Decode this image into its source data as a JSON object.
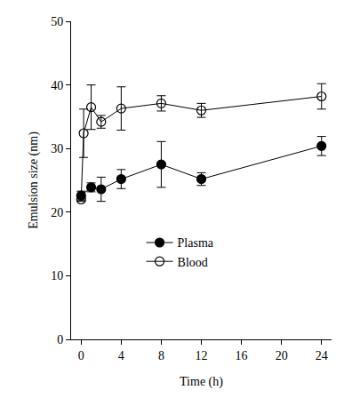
{
  "chart_data": {
    "type": "line",
    "x_label": "Time (h)",
    "y_label": "Emulsion size (nm)",
    "xlim": [
      -1,
      25
    ],
    "xticks": [
      0,
      4,
      8,
      12,
      16,
      20,
      24
    ],
    "ylim": [
      0,
      50
    ],
    "yticks": [
      0,
      10,
      20,
      30,
      40,
      50
    ],
    "grid": false,
    "legend": "lower center",
    "series": [
      {
        "name": "Plasma",
        "color": "#000000",
        "marker": "filled",
        "x": [
          0,
          1,
          2,
          4,
          8,
          12,
          24
        ],
        "values": [
          22.6,
          23.9,
          23.6,
          25.2,
          27.5,
          25.2,
          30.4
        ],
        "errors": [
          0.7,
          0.7,
          1.9,
          1.5,
          3.6,
          1.0,
          1.5
        ]
      },
      {
        "name": "Blood",
        "color": "#000000",
        "marker": "open",
        "x": [
          0,
          0.25,
          1,
          2,
          4,
          8,
          12,
          24
        ],
        "values": [
          22.0,
          32.4,
          36.5,
          34.2,
          36.3,
          37.1,
          36.0,
          38.2
        ],
        "errors": [
          0.3,
          3.8,
          3.5,
          1.0,
          3.4,
          1.2,
          1.1,
          2.0
        ]
      }
    ]
  }
}
